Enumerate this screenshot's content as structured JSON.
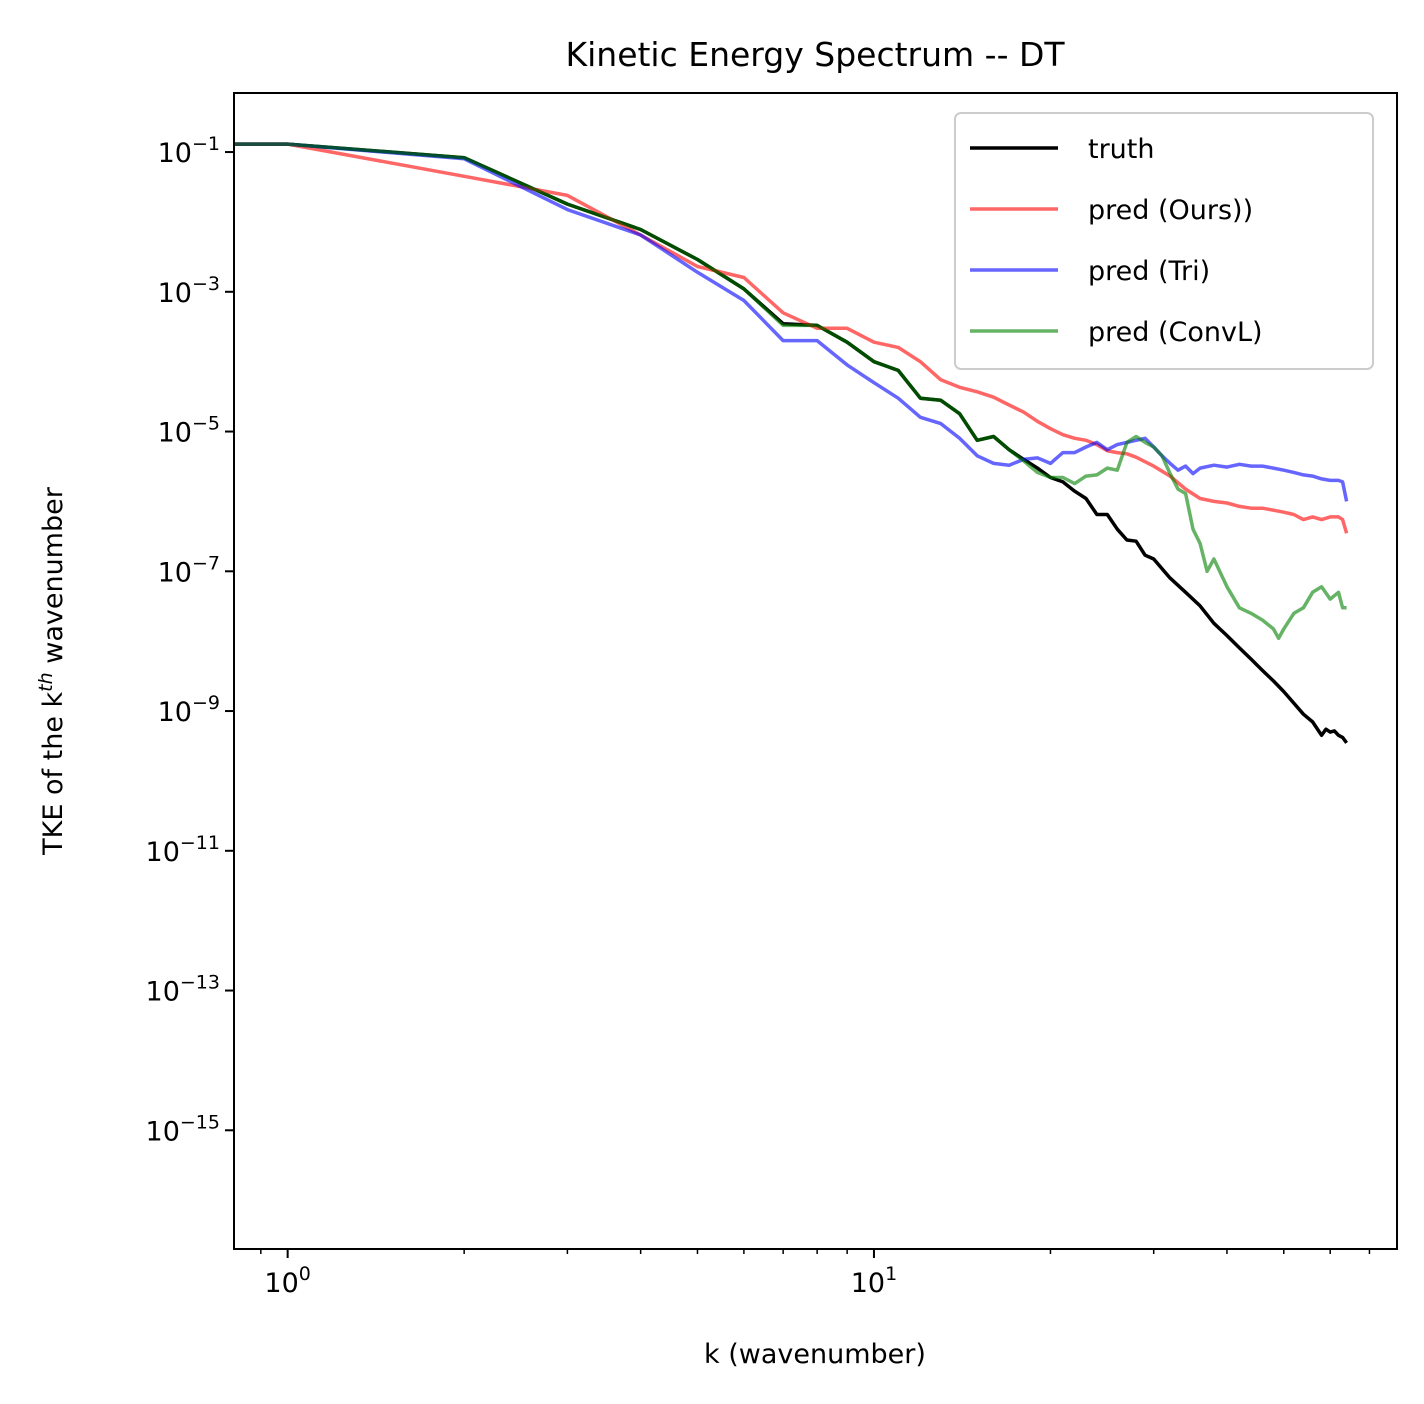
{
  "chart_data": {
    "type": "line",
    "title": "Kinetic Energy Spectrum -- DT",
    "xlabel": "k (wavenumber)",
    "ylabel_prefix": "TKE of the k",
    "ylabel_superscript": "th",
    "ylabel_suffix": " wavenumber",
    "x_scale": "log",
    "y_scale": "log",
    "xlim": [
      0.81,
      78
    ],
    "ylim": [
      2e-17,
      0.7
    ],
    "x_ticks": [
      {
        "value": 1,
        "base": "10",
        "exp": "0"
      },
      {
        "value": 10,
        "base": "10",
        "exp": "1"
      }
    ],
    "y_ticks": [
      {
        "value": 0.1,
        "base": "10",
        "exp": "−1"
      },
      {
        "value": 0.001,
        "base": "10",
        "exp": "−3"
      },
      {
        "value": 1e-05,
        "base": "10",
        "exp": "−5"
      },
      {
        "value": 1e-07,
        "base": "10",
        "exp": "−7"
      },
      {
        "value": 1e-09,
        "base": "10",
        "exp": "−9"
      },
      {
        "value": 1e-11,
        "base": "10",
        "exp": "−11"
      },
      {
        "value": 1e-13,
        "base": "10",
        "exp": "−13"
      },
      {
        "value": 1e-15,
        "base": "10",
        "exp": "−15"
      }
    ],
    "grid": false,
    "legend_position": "top-right",
    "series": [
      {
        "name": "truth",
        "color": "#000000",
        "opacity": 1.0,
        "points": [
          [
            0.81,
            0.13
          ],
          [
            1,
            0.13
          ],
          [
            2,
            0.083
          ],
          [
            3,
            0.018
          ],
          [
            4,
            0.0078
          ],
          [
            5,
            0.0029
          ],
          [
            6,
            0.0011
          ],
          [
            7,
            0.00035
          ],
          [
            8,
            0.00033
          ],
          [
            9,
            0.00019
          ],
          [
            10,
            0.0001
          ],
          [
            11,
            7.5e-05
          ],
          [
            12,
            3e-05
          ],
          [
            13,
            2.8e-05
          ],
          [
            14,
            1.8e-05
          ],
          [
            15,
            7.5e-06
          ],
          [
            16,
            8.5e-06
          ],
          [
            17,
            5.5e-06
          ],
          [
            18,
            4e-06
          ],
          [
            19,
            3e-06
          ],
          [
            20,
            2.2e-06
          ],
          [
            21,
            1.9e-06
          ],
          [
            22,
            1.4e-06
          ],
          [
            23,
            1.1e-06
          ],
          [
            24,
            6.5e-07
          ],
          [
            25,
            6.5e-07
          ],
          [
            26,
            4e-07
          ],
          [
            27,
            2.8e-07
          ],
          [
            28,
            2.7e-07
          ],
          [
            29,
            1.7e-07
          ],
          [
            30,
            1.5e-07
          ],
          [
            32,
            8e-08
          ],
          [
            34,
            5e-08
          ],
          [
            36,
            3.2e-08
          ],
          [
            38,
            1.8e-08
          ],
          [
            40,
            1.2e-08
          ],
          [
            42,
            8e-09
          ],
          [
            44,
            5.5e-09
          ],
          [
            46,
            3.8e-09
          ],
          [
            48,
            2.7e-09
          ],
          [
            50,
            1.9e-09
          ],
          [
            52,
            1.3e-09
          ],
          [
            54,
            9e-10
          ],
          [
            56,
            7e-10
          ],
          [
            58,
            4.5e-10
          ],
          [
            59,
            5.5e-10
          ],
          [
            60,
            5e-10
          ],
          [
            61,
            5.2e-10
          ],
          [
            62,
            4.5e-10
          ],
          [
            63,
            4.2e-10
          ],
          [
            64,
            3.5e-10
          ]
        ]
      },
      {
        "name": "pred (Ours))",
        "color": "#ff0000",
        "opacity": 0.6,
        "points": [
          [
            0.81,
            0.13
          ],
          [
            1,
            0.13
          ],
          [
            2,
            0.045
          ],
          [
            3,
            0.024
          ],
          [
            4,
            0.0065
          ],
          [
            5,
            0.0023
          ],
          [
            6,
            0.0016
          ],
          [
            7,
            0.0005
          ],
          [
            8,
            0.0003
          ],
          [
            9,
            0.0003
          ],
          [
            10,
            0.00019
          ],
          [
            11,
            0.00016
          ],
          [
            12,
            0.0001
          ],
          [
            13,
            5.5e-05
          ],
          [
            14,
            4.3e-05
          ],
          [
            15,
            3.7e-05
          ],
          [
            16,
            3.1e-05
          ],
          [
            17,
            2.4e-05
          ],
          [
            18,
            1.9e-05
          ],
          [
            19,
            1.4e-05
          ],
          [
            20,
            1.1e-05
          ],
          [
            21,
            9e-06
          ],
          [
            22,
            8e-06
          ],
          [
            23,
            7.5e-06
          ],
          [
            24,
            6.5e-06
          ],
          [
            25,
            5.3e-06
          ],
          [
            26,
            5e-06
          ],
          [
            27,
            4.8e-06
          ],
          [
            28,
            4.3e-06
          ],
          [
            30,
            3.2e-06
          ],
          [
            32,
            2.3e-06
          ],
          [
            34,
            1.5e-06
          ],
          [
            36,
            1.1e-06
          ],
          [
            38,
            1e-06
          ],
          [
            40,
            9.5e-07
          ],
          [
            42,
            8.5e-07
          ],
          [
            44,
            8e-07
          ],
          [
            46,
            8e-07
          ],
          [
            48,
            7.5e-07
          ],
          [
            50,
            7e-07
          ],
          [
            52,
            6.5e-07
          ],
          [
            54,
            5.5e-07
          ],
          [
            56,
            6e-07
          ],
          [
            58,
            5.5e-07
          ],
          [
            60,
            6e-07
          ],
          [
            62,
            6e-07
          ],
          [
            63,
            5.5e-07
          ],
          [
            64,
            3.5e-07
          ]
        ]
      },
      {
        "name": "pred (Tri)",
        "color": "#0000ff",
        "opacity": 0.6,
        "points": [
          [
            0.81,
            0.13
          ],
          [
            1,
            0.13
          ],
          [
            2,
            0.08
          ],
          [
            3,
            0.015
          ],
          [
            4,
            0.0065
          ],
          [
            5,
            0.0019
          ],
          [
            6,
            0.00075
          ],
          [
            7,
            0.0002
          ],
          [
            8,
            0.0002
          ],
          [
            9,
            9e-05
          ],
          [
            10,
            5e-05
          ],
          [
            11,
            3e-05
          ],
          [
            12,
            1.6e-05
          ],
          [
            13,
            1.3e-05
          ],
          [
            14,
            8e-06
          ],
          [
            15,
            4.5e-06
          ],
          [
            16,
            3.5e-06
          ],
          [
            17,
            3.3e-06
          ],
          [
            18,
            4e-06
          ],
          [
            19,
            4.2e-06
          ],
          [
            20,
            3.5e-06
          ],
          [
            21,
            5e-06
          ],
          [
            22,
            5e-06
          ],
          [
            23,
            6e-06
          ],
          [
            24,
            7e-06
          ],
          [
            25,
            5.5e-06
          ],
          [
            26,
            6.5e-06
          ],
          [
            27,
            7e-06
          ],
          [
            28,
            7.5e-06
          ],
          [
            29,
            8e-06
          ],
          [
            30,
            6e-06
          ],
          [
            31,
            4.5e-06
          ],
          [
            32,
            3.5e-06
          ],
          [
            33,
            2.8e-06
          ],
          [
            34,
            3.2e-06
          ],
          [
            35,
            2.5e-06
          ],
          [
            36,
            3e-06
          ],
          [
            38,
            3.3e-06
          ],
          [
            40,
            3.1e-06
          ],
          [
            42,
            3.4e-06
          ],
          [
            44,
            3.2e-06
          ],
          [
            46,
            3.2e-06
          ],
          [
            48,
            3e-06
          ],
          [
            50,
            2.8e-06
          ],
          [
            52,
            2.6e-06
          ],
          [
            54,
            2.4e-06
          ],
          [
            56,
            2.3e-06
          ],
          [
            58,
            2.1e-06
          ],
          [
            60,
            2e-06
          ],
          [
            62,
            2e-06
          ],
          [
            63,
            1.9e-06
          ],
          [
            64,
            1e-06
          ]
        ]
      },
      {
        "name": "pred (ConvL)",
        "color": "#008000",
        "opacity": 0.6,
        "points": [
          [
            0.81,
            0.13
          ],
          [
            1,
            0.13
          ],
          [
            2,
            0.083
          ],
          [
            3,
            0.018
          ],
          [
            4,
            0.0078
          ],
          [
            5,
            0.0029
          ],
          [
            6,
            0.0011
          ],
          [
            7,
            0.00033
          ],
          [
            8,
            0.00033
          ],
          [
            9,
            0.00019
          ],
          [
            10,
            0.0001
          ],
          [
            11,
            7.5e-05
          ],
          [
            12,
            3e-05
          ],
          [
            13,
            2.8e-05
          ],
          [
            14,
            1.8e-05
          ],
          [
            15,
            7.5e-06
          ],
          [
            16,
            8.5e-06
          ],
          [
            17,
            5.5e-06
          ],
          [
            18,
            3.8e-06
          ],
          [
            19,
            2.6e-06
          ],
          [
            20,
            2.2e-06
          ],
          [
            21,
            2.2e-06
          ],
          [
            22,
            1.8e-06
          ],
          [
            23,
            2.3e-06
          ],
          [
            24,
            2.4e-06
          ],
          [
            25,
            3e-06
          ],
          [
            26,
            2.8e-06
          ],
          [
            27,
            7e-06
          ],
          [
            28,
            8.5e-06
          ],
          [
            29,
            7e-06
          ],
          [
            30,
            6e-06
          ],
          [
            31,
            4.5e-06
          ],
          [
            32,
            2.5e-06
          ],
          [
            33,
            1.5e-06
          ],
          [
            34,
            1.3e-06
          ],
          [
            35,
            4e-07
          ],
          [
            36,
            2.5e-07
          ],
          [
            37,
            1e-07
          ],
          [
            38,
            1.5e-07
          ],
          [
            40,
            6e-08
          ],
          [
            42,
            3e-08
          ],
          [
            44,
            2.5e-08
          ],
          [
            46,
            2e-08
          ],
          [
            48,
            1.5e-08
          ],
          [
            49,
            1.1e-08
          ],
          [
            50,
            1.5e-08
          ],
          [
            52,
            2.5e-08
          ],
          [
            54,
            3e-08
          ],
          [
            56,
            5e-08
          ],
          [
            58,
            6e-08
          ],
          [
            60,
            4e-08
          ],
          [
            62,
            5e-08
          ],
          [
            63,
            3e-08
          ],
          [
            64,
            3e-08
          ]
        ]
      }
    ]
  }
}
